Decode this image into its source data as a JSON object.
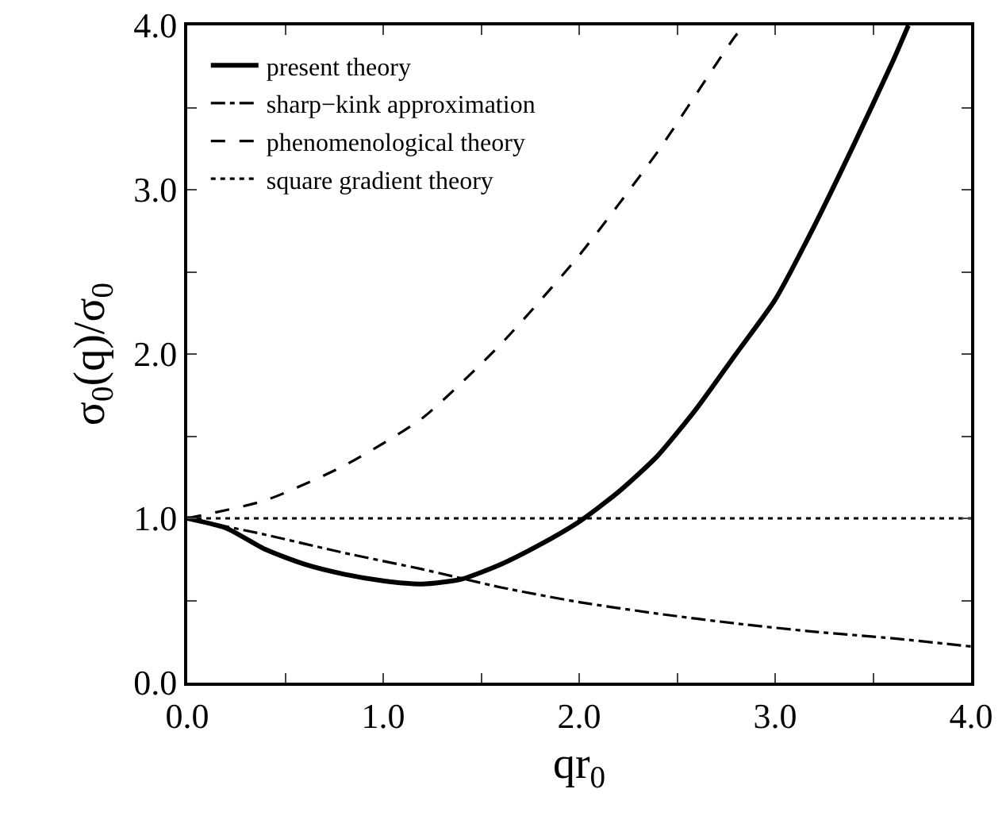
{
  "chart_data": {
    "type": "line",
    "xlabel": "qr$_{0}$",
    "ylabel": "σ$_{0}$(q)/σ$_{0}$",
    "xlim": [
      0,
      4
    ],
    "ylim": [
      0,
      4
    ],
    "xticks": [
      {
        "value": 0,
        "label": "0.0"
      },
      {
        "value": 0.5,
        "label": null
      },
      {
        "value": 1,
        "label": "1.0"
      },
      {
        "value": 1.5,
        "label": null
      },
      {
        "value": 2,
        "label": "2.0"
      },
      {
        "value": 2.5,
        "label": null
      },
      {
        "value": 3,
        "label": "3.0"
      },
      {
        "value": 3.5,
        "label": null
      },
      {
        "value": 4,
        "label": "4.0"
      }
    ],
    "yticks": [
      {
        "value": 0,
        "label": "0.0"
      },
      {
        "value": 0.5,
        "label": null
      },
      {
        "value": 1,
        "label": "1.0"
      },
      {
        "value": 1.5,
        "label": null
      },
      {
        "value": 2,
        "label": "2.0"
      },
      {
        "value": 2.5,
        "label": null
      },
      {
        "value": 3,
        "label": "3.0"
      },
      {
        "value": 3.5,
        "label": null
      },
      {
        "value": 4,
        "label": "4.0"
      }
    ],
    "grid": false,
    "legend": "top left",
    "marker": "none",
    "series": [
      {
        "name": "present theory",
        "color": "#000000",
        "line_style": "solid",
        "x": [
          0,
          0.2,
          0.4,
          0.6,
          0.8,
          1.0,
          1.2,
          1.4,
          1.6,
          1.8,
          2.0,
          2.2,
          2.4,
          2.6,
          2.8,
          3.0,
          3.2,
          3.4,
          3.6,
          3.68
        ],
        "values": [
          1.0,
          0.94,
          0.81,
          0.72,
          0.66,
          0.62,
          0.6,
          0.63,
          0.72,
          0.84,
          0.98,
          1.16,
          1.38,
          1.67,
          2.0,
          2.33,
          2.78,
          3.27,
          3.78,
          4.0
        ]
      },
      {
        "name": "sharp−kink approximation",
        "color": "#000000",
        "line_style": "dashdot",
        "x": [
          0,
          0.4,
          0.8,
          1.2,
          1.6,
          2.0,
          2.4,
          2.8,
          3.2,
          3.6,
          4.0
        ],
        "values": [
          1.0,
          0.9,
          0.79,
          0.69,
          0.58,
          0.49,
          0.42,
          0.36,
          0.31,
          0.27,
          0.22
        ]
      },
      {
        "name": "phenomenological theory",
        "color": "#000000",
        "line_style": "dashed",
        "x": [
          0,
          0.4,
          0.8,
          1.2,
          1.6,
          2.0,
          2.4,
          2.8,
          2.85
        ],
        "values": [
          1.0,
          1.11,
          1.32,
          1.61,
          2.06,
          2.6,
          3.23,
          3.94,
          4.0
        ]
      },
      {
        "name": "square gradient theory",
        "color": "#000000",
        "line_style": "dotted",
        "x": [
          0,
          4
        ],
        "values": [
          1.0,
          1.0
        ]
      }
    ]
  }
}
